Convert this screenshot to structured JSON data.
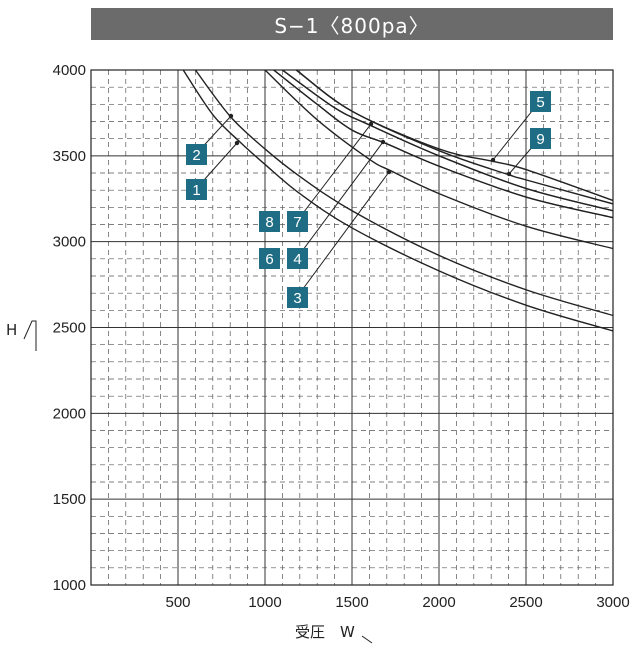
{
  "chart_data": {
    "type": "line",
    "title": "S−1〈800pa〉",
    "xlabel": "受圧　W",
    "ylabel": "H",
    "xlim": [
      0,
      3000
    ],
    "ylim": [
      1000,
      4000
    ],
    "xticks": [
      500,
      1000,
      1500,
      2000,
      2500,
      3000
    ],
    "yticks": [
      1000,
      1500,
      2000,
      2500,
      3000,
      3500,
      4000
    ],
    "grid": true,
    "line_color": "#222222",
    "label_box_color": "#1e6d84",
    "series": [
      {
        "name": "1",
        "points": [
          [
            530,
            4000
          ],
          [
            700,
            3740
          ],
          [
            857,
            3580
          ],
          [
            1000,
            3450
          ],
          [
            1200,
            3280
          ],
          [
            1500,
            3080
          ],
          [
            2000,
            2830
          ],
          [
            2500,
            2630
          ],
          [
            3000,
            2480
          ]
        ]
      },
      {
        "name": "2",
        "points": [
          [
            600,
            4000
          ],
          [
            800,
            3730
          ],
          [
            1000,
            3540
          ],
          [
            1200,
            3380
          ],
          [
            1500,
            3180
          ],
          [
            2000,
            2920
          ],
          [
            2500,
            2720
          ],
          [
            3000,
            2570
          ]
        ]
      },
      {
        "name": "3",
        "points": [
          [
            1000,
            4000
          ],
          [
            1300,
            3710
          ],
          [
            1600,
            3480
          ],
          [
            1729,
            3410
          ],
          [
            2000,
            3280
          ],
          [
            2500,
            3090
          ],
          [
            3000,
            2960
          ]
        ]
      },
      {
        "name": "4",
        "points": [
          [
            1050,
            4000
          ],
          [
            1300,
            3800
          ],
          [
            1500,
            3650
          ],
          [
            1700,
            3570
          ],
          [
            2000,
            3440
          ],
          [
            2500,
            3260
          ],
          [
            3000,
            3140
          ]
        ]
      },
      {
        "name": "5",
        "points": [
          [
            1180,
            4000
          ],
          [
            1500,
            3760
          ],
          [
            2000,
            3540
          ],
          [
            2300,
            3470
          ],
          [
            2500,
            3420
          ],
          [
            3000,
            3240
          ]
        ]
      },
      {
        "name": "6",
        "points": [
          [
            1050,
            4000
          ],
          [
            1300,
            3800
          ],
          [
            1500,
            3650
          ],
          [
            1700,
            3570
          ],
          [
            2000,
            3440
          ],
          [
            2500,
            3260
          ],
          [
            3000,
            3140
          ]
        ]
      },
      {
        "name": "7",
        "points": [
          [
            1100,
            4000
          ],
          [
            1400,
            3780
          ],
          [
            1600,
            3680
          ],
          [
            2000,
            3500
          ],
          [
            2500,
            3310
          ],
          [
            3000,
            3180
          ]
        ]
      },
      {
        "name": "8",
        "points": [
          [
            1100,
            4000
          ],
          [
            1400,
            3780
          ],
          [
            1600,
            3680
          ],
          [
            2000,
            3500
          ],
          [
            2500,
            3310
          ],
          [
            3000,
            3180
          ]
        ]
      },
      {
        "name": "9",
        "points": [
          [
            1180,
            4000
          ],
          [
            1500,
            3760
          ],
          [
            2000,
            3530
          ],
          [
            2400,
            3390
          ],
          [
            2500,
            3360
          ],
          [
            3000,
            3220
          ]
        ]
      }
    ]
  }
}
